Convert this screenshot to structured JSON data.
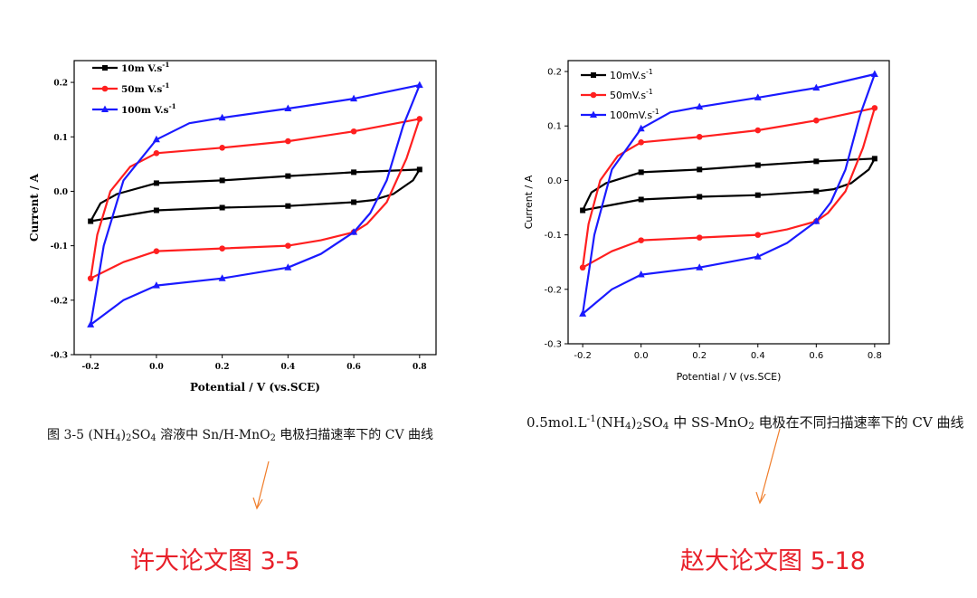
{
  "colors": {
    "black": "#000000",
    "red": "#ff1f1f",
    "blue": "#1a1aff",
    "annotation_orange": "#f07d2a",
    "label_red": "#e8202a"
  },
  "chart_data": [
    {
      "type": "line",
      "xlabel": "Potential / V (vs.SCE)",
      "ylabel": "Current / A",
      "xlim": [
        -0.25,
        0.85
      ],
      "ylim": [
        -0.3,
        0.24
      ],
      "x_ticks": [
        "-0.2",
        "0.0",
        "0.2",
        "0.4",
        "0.6",
        "0.8"
      ],
      "y_ticks": [
        "0.2",
        "0.1",
        "0.0",
        "-0.1",
        "-0.2",
        "-0.3"
      ],
      "legend": [
        {
          "base": "10m V.s",
          "exp": "-1",
          "series": 0
        },
        {
          "base": "50m V.s",
          "exp": "-1",
          "series": 1
        },
        {
          "base": "100m V.s",
          "exp": "-1",
          "series": 2
        }
      ],
      "legend_position": "top-left",
      "series": [
        {
          "name": "10mV/s",
          "color_key": "black",
          "marker": "square",
          "upper": [
            [
              -0.2,
              -0.055
            ],
            [
              -0.17,
              -0.022
            ],
            [
              -0.12,
              -0.005
            ],
            [
              0.0,
              0.015
            ],
            [
              0.2,
              0.02
            ],
            [
              0.4,
              0.028
            ],
            [
              0.6,
              0.035
            ],
            [
              0.8,
              0.04
            ]
          ],
          "lower": [
            [
              0.8,
              0.04
            ],
            [
              0.78,
              0.02
            ],
            [
              0.72,
              -0.005
            ],
            [
              0.66,
              -0.016
            ],
            [
              0.6,
              -0.02
            ],
            [
              0.4,
              -0.027
            ],
            [
              0.2,
              -0.03
            ],
            [
              0.0,
              -0.035
            ],
            [
              -0.2,
              -0.055
            ]
          ],
          "markers": [
            [
              -0.2,
              -0.055
            ],
            [
              0.0,
              0.015
            ],
            [
              0.2,
              0.02
            ],
            [
              0.4,
              0.028
            ],
            [
              0.6,
              0.035
            ],
            [
              0.8,
              0.04
            ],
            [
              0.6,
              -0.02
            ],
            [
              0.4,
              -0.027
            ],
            [
              0.2,
              -0.03
            ],
            [
              0.0,
              -0.035
            ]
          ]
        },
        {
          "name": "50mV/s",
          "color_key": "red",
          "marker": "circle",
          "upper": [
            [
              -0.2,
              -0.16
            ],
            [
              -0.18,
              -0.08
            ],
            [
              -0.14,
              0.0
            ],
            [
              -0.08,
              0.045
            ],
            [
              0.0,
              0.07
            ],
            [
              0.2,
              0.08
            ],
            [
              0.4,
              0.092
            ],
            [
              0.6,
              0.11
            ],
            [
              0.8,
              0.133
            ]
          ],
          "lower": [
            [
              0.8,
              0.133
            ],
            [
              0.76,
              0.06
            ],
            [
              0.7,
              -0.02
            ],
            [
              0.64,
              -0.06
            ],
            [
              0.6,
              -0.075
            ],
            [
              0.5,
              -0.09
            ],
            [
              0.4,
              -0.1
            ],
            [
              0.2,
              -0.105
            ],
            [
              0.0,
              -0.11
            ],
            [
              -0.1,
              -0.13
            ],
            [
              -0.2,
              -0.16
            ]
          ],
          "markers": [
            [
              -0.2,
              -0.16
            ],
            [
              0.0,
              0.07
            ],
            [
              0.2,
              0.08
            ],
            [
              0.4,
              0.092
            ],
            [
              0.6,
              0.11
            ],
            [
              0.8,
              0.133
            ],
            [
              0.6,
              -0.075
            ],
            [
              0.4,
              -0.1
            ],
            [
              0.2,
              -0.105
            ],
            [
              0.0,
              -0.11
            ]
          ]
        },
        {
          "name": "100mV/s",
          "color_key": "blue",
          "marker": "triangle",
          "upper": [
            [
              -0.2,
              -0.245
            ],
            [
              -0.16,
              -0.1
            ],
            [
              -0.1,
              0.02
            ],
            [
              0.0,
              0.095
            ],
            [
              0.1,
              0.125
            ],
            [
              0.2,
              0.135
            ],
            [
              0.4,
              0.152
            ],
            [
              0.6,
              0.17
            ],
            [
              0.8,
              0.195
            ]
          ],
          "lower": [
            [
              0.8,
              0.195
            ],
            [
              0.75,
              0.12
            ],
            [
              0.7,
              0.02
            ],
            [
              0.65,
              -0.04
            ],
            [
              0.6,
              -0.075
            ],
            [
              0.5,
              -0.115
            ],
            [
              0.4,
              -0.14
            ],
            [
              0.2,
              -0.16
            ],
            [
              0.0,
              -0.173
            ],
            [
              -0.1,
              -0.2
            ],
            [
              -0.2,
              -0.245
            ]
          ],
          "markers": [
            [
              -0.2,
              -0.245
            ],
            [
              0.0,
              0.095
            ],
            [
              0.2,
              0.135
            ],
            [
              0.4,
              0.152
            ],
            [
              0.6,
              0.17
            ],
            [
              0.8,
              0.195
            ],
            [
              0.6,
              -0.075
            ],
            [
              0.4,
              -0.14
            ],
            [
              0.2,
              -0.16
            ],
            [
              0.0,
              -0.173
            ]
          ]
        }
      ]
    },
    {
      "type": "line",
      "xlabel": "Potential / V (vs.SCE)",
      "ylabel": "Current / A",
      "xlim": [
        -0.25,
        0.85
      ],
      "ylim": [
        -0.3,
        0.22
      ],
      "x_ticks": [
        "-0.2",
        "0.0",
        "0.2",
        "0.4",
        "0.6",
        "0.8"
      ],
      "y_ticks": [
        "0.2",
        "0.1",
        "0.0",
        "-0.1",
        "-0.2",
        "-0.3"
      ],
      "legend": [
        {
          "base": "10mV.s",
          "exp": "-1",
          "series": 0
        },
        {
          "base": "50mV.s",
          "exp": "-1",
          "series": 1
        },
        {
          "base": "100mV.s",
          "exp": "-1",
          "series": 2
        }
      ],
      "legend_position": "top-left",
      "series": [
        {
          "name": "10mV/s",
          "color_key": "black",
          "marker": "square",
          "upper": [
            [
              -0.2,
              -0.055
            ],
            [
              -0.17,
              -0.022
            ],
            [
              -0.12,
              -0.005
            ],
            [
              0.0,
              0.015
            ],
            [
              0.2,
              0.02
            ],
            [
              0.4,
              0.028
            ],
            [
              0.6,
              0.035
            ],
            [
              0.8,
              0.04
            ]
          ],
          "lower": [
            [
              0.8,
              0.04
            ],
            [
              0.78,
              0.02
            ],
            [
              0.72,
              -0.005
            ],
            [
              0.66,
              -0.016
            ],
            [
              0.6,
              -0.02
            ],
            [
              0.4,
              -0.027
            ],
            [
              0.2,
              -0.03
            ],
            [
              0.0,
              -0.035
            ],
            [
              -0.2,
              -0.055
            ]
          ],
          "markers": [
            [
              -0.2,
              -0.055
            ],
            [
              0.0,
              0.015
            ],
            [
              0.2,
              0.02
            ],
            [
              0.4,
              0.028
            ],
            [
              0.6,
              0.035
            ],
            [
              0.8,
              0.04
            ],
            [
              0.6,
              -0.02
            ],
            [
              0.4,
              -0.027
            ],
            [
              0.2,
              -0.03
            ],
            [
              0.0,
              -0.035
            ]
          ]
        },
        {
          "name": "50mV/s",
          "color_key": "red",
          "marker": "circle",
          "upper": [
            [
              -0.2,
              -0.16
            ],
            [
              -0.18,
              -0.08
            ],
            [
              -0.14,
              0.0
            ],
            [
              -0.08,
              0.045
            ],
            [
              0.0,
              0.07
            ],
            [
              0.2,
              0.08
            ],
            [
              0.4,
              0.092
            ],
            [
              0.6,
              0.11
            ],
            [
              0.8,
              0.133
            ]
          ],
          "lower": [
            [
              0.8,
              0.133
            ],
            [
              0.76,
              0.06
            ],
            [
              0.7,
              -0.02
            ],
            [
              0.64,
              -0.06
            ],
            [
              0.6,
              -0.075
            ],
            [
              0.5,
              -0.09
            ],
            [
              0.4,
              -0.1
            ],
            [
              0.2,
              -0.105
            ],
            [
              0.0,
              -0.11
            ],
            [
              -0.1,
              -0.13
            ],
            [
              -0.2,
              -0.16
            ]
          ],
          "markers": [
            [
              -0.2,
              -0.16
            ],
            [
              0.0,
              0.07
            ],
            [
              0.2,
              0.08
            ],
            [
              0.4,
              0.092
            ],
            [
              0.6,
              0.11
            ],
            [
              0.8,
              0.133
            ],
            [
              0.6,
              -0.075
            ],
            [
              0.4,
              -0.1
            ],
            [
              0.2,
              -0.105
            ],
            [
              0.0,
              -0.11
            ]
          ]
        },
        {
          "name": "100mV/s",
          "color_key": "blue",
          "marker": "triangle",
          "upper": [
            [
              -0.2,
              -0.245
            ],
            [
              -0.16,
              -0.1
            ],
            [
              -0.1,
              0.02
            ],
            [
              0.0,
              0.095
            ],
            [
              0.1,
              0.125
            ],
            [
              0.2,
              0.135
            ],
            [
              0.4,
              0.152
            ],
            [
              0.6,
              0.17
            ],
            [
              0.8,
              0.195
            ]
          ],
          "lower": [
            [
              0.8,
              0.195
            ],
            [
              0.75,
              0.12
            ],
            [
              0.7,
              0.02
            ],
            [
              0.65,
              -0.04
            ],
            [
              0.6,
              -0.075
            ],
            [
              0.5,
              -0.115
            ],
            [
              0.4,
              -0.14
            ],
            [
              0.2,
              -0.16
            ],
            [
              0.0,
              -0.173
            ],
            [
              -0.1,
              -0.2
            ],
            [
              -0.2,
              -0.245
            ]
          ],
          "markers": [
            [
              -0.2,
              -0.245
            ],
            [
              0.0,
              0.095
            ],
            [
              0.2,
              0.135
            ],
            [
              0.4,
              0.152
            ],
            [
              0.6,
              0.17
            ],
            [
              0.8,
              0.195
            ],
            [
              0.6,
              -0.075
            ],
            [
              0.4,
              -0.14
            ],
            [
              0.2,
              -0.16
            ],
            [
              0.0,
              -0.173
            ]
          ]
        }
      ]
    }
  ],
  "captions": {
    "a": {
      "prefix": "图 3-5 (NH",
      "sub1": "4",
      "mid1": ")",
      "sub2": "2",
      "mid2": "SO",
      "sub3": "4",
      "mid3": " 溶液中 Sn/H-MnO",
      "sub4": "2",
      "suffix": " 电极扫描速率下的 CV 曲线"
    },
    "b": {
      "prefix": "0.5mol.L",
      "sup1": "-1",
      "mid1": "(NH",
      "sub1": "4",
      "mid2": ")",
      "sub2": "2",
      "mid3": "SO",
      "sub3": "4",
      "mid4": " 中 SS-MnO",
      "sub4": "2",
      "suffix": " 电极在不同扫描速率下的 CV 曲线"
    }
  },
  "labels": {
    "a": "许大论文图 3-5",
    "b": "赵大论文图 5-18"
  }
}
